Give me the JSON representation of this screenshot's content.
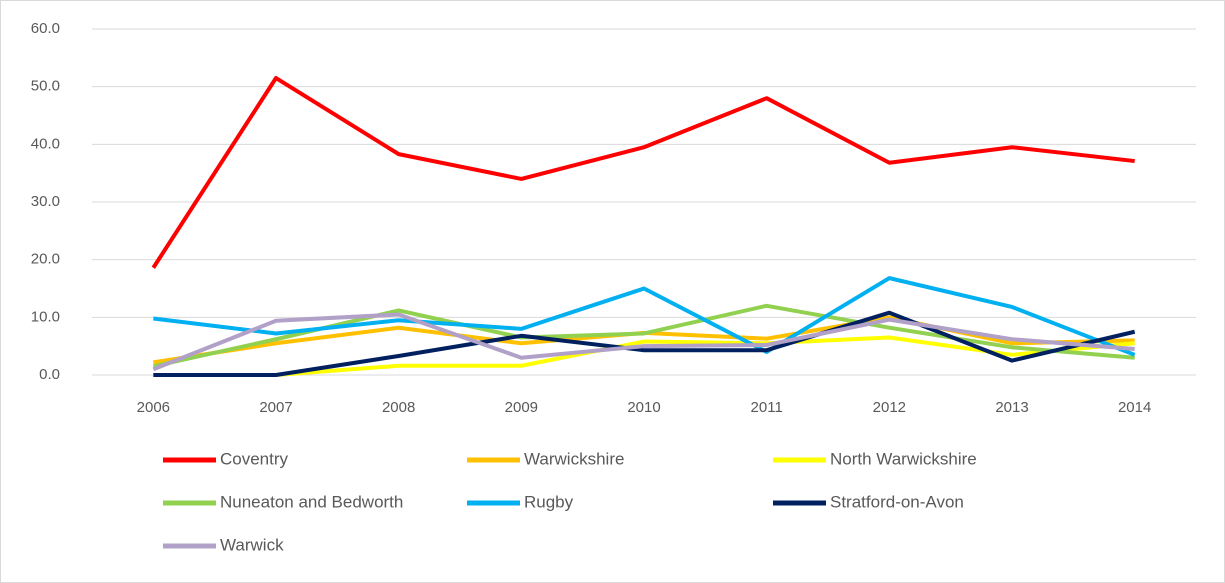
{
  "chart_data": {
    "type": "line",
    "categories": [
      "2006",
      "2007",
      "2008",
      "2009",
      "2010",
      "2011",
      "2012",
      "2013",
      "2014"
    ],
    "series": [
      {
        "name": "Coventry",
        "color": "#ff0000",
        "values": [
          18.6,
          51.5,
          38.3,
          34.0,
          39.5,
          48.0,
          36.8,
          39.5,
          37.1
        ]
      },
      {
        "name": "Warwickshire",
        "color": "#ffc000",
        "values": [
          2.2,
          5.5,
          8.2,
          5.5,
          7.3,
          6.3,
          10.0,
          5.5,
          6.0
        ]
      },
      {
        "name": "North Warwickshire",
        "color": "#ffff00",
        "values": [
          0,
          0,
          1.6,
          1.6,
          5.8,
          5.5,
          6.5,
          3.5,
          5.5
        ]
      },
      {
        "name": "Nuneaton and Bedworth",
        "color": "#92d050",
        "values": [
          1.5,
          6.2,
          11.2,
          6.5,
          7.2,
          12.0,
          8.2,
          4.8,
          3.0
        ]
      },
      {
        "name": "Rugby",
        "color": "#00b0f0",
        "values": [
          9.8,
          7.2,
          9.5,
          8.0,
          15.0,
          4.0,
          16.8,
          11.8,
          3.5
        ]
      },
      {
        "name": "Stratford-on-Avon",
        "color": "#002060",
        "values": [
          0,
          0,
          3.3,
          6.8,
          4.3,
          4.3,
          10.8,
          2.5,
          7.5
        ]
      },
      {
        "name": "Warwick",
        "color": "#b1a0c7",
        "values": [
          1.0,
          9.4,
          10.5,
          3.0,
          5.0,
          5.2,
          9.6,
          6.2,
          4.5
        ]
      }
    ],
    "ylim": [
      0,
      60
    ],
    "yticks": [
      {
        "value": 0,
        "label": "0.0"
      },
      {
        "value": 10,
        "label": "10.0"
      },
      {
        "value": 20,
        "label": "20.0"
      },
      {
        "value": 30,
        "label": "30.0"
      },
      {
        "value": 40,
        "label": "40.0"
      },
      {
        "value": 50,
        "label": "50.0"
      },
      {
        "value": 60,
        "label": "60.0"
      }
    ],
    "grid": true,
    "legend": "bottom"
  }
}
